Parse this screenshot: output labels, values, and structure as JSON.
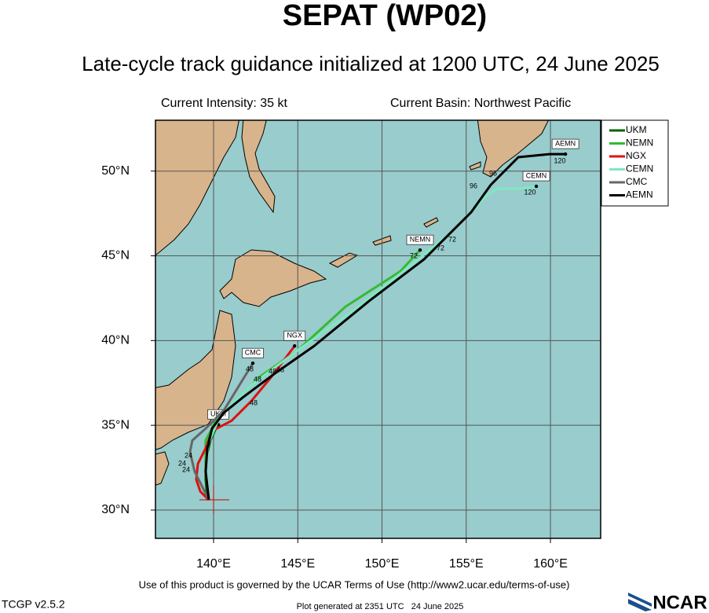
{
  "chart_data": {
    "type": "track",
    "title": "SEPAT (WP02)",
    "subtitle": "Late-cycle track guidance initialized at 1200 UTC, 24 June 2025",
    "intensity": "Current Intensity: 35 kt",
    "basin": "Current Basin: Northwest Pacific",
    "xlim": [
      136.55,
      162.98
    ],
    "ylim": [
      28.33,
      53.0
    ],
    "xticks": [
      {
        "value": 140,
        "label": "140°E"
      },
      {
        "value": 145,
        "label": "145°E"
      },
      {
        "value": 150,
        "label": "150°E"
      },
      {
        "value": 155,
        "label": "155°E"
      },
      {
        "value": 160,
        "label": "160°E"
      }
    ],
    "yticks": [
      {
        "value": 30,
        "label": "30°N"
      },
      {
        "value": 35,
        "label": "35°N"
      },
      {
        "value": 40,
        "label": "40°N"
      },
      {
        "value": 45,
        "label": "45°N"
      },
      {
        "value": 50,
        "label": "50°N"
      }
    ],
    "grid": true,
    "series": [
      {
        "name": "UKM",
        "color": "#006400",
        "x": [
          139.63,
          139.53,
          139.53,
          139.81,
          140.14,
          140.28
        ],
        "values": [
          30.59,
          31.8,
          32.95,
          34.11,
          34.81,
          35.04
        ]
      },
      {
        "name": "NEMN",
        "color": "#33bb33",
        "x": [
          139.72,
          139.53,
          139.53,
          140.14,
          141.3,
          142.7,
          145.03,
          147.83,
          151.09,
          152.26
        ],
        "values": [
          30.59,
          32.26,
          34.11,
          35.27,
          36.43,
          37.83,
          39.45,
          42.0,
          44.09,
          45.34
        ]
      },
      {
        "name": "NGX",
        "color": "#e01010",
        "x": [
          139.72,
          139.21,
          138.97,
          139.07,
          139.53,
          139.91,
          141.07,
          142.24,
          143.41,
          144.81
        ],
        "values": [
          30.59,
          31.1,
          31.8,
          32.73,
          33.65,
          34.67,
          35.27,
          36.43,
          37.83,
          39.68
        ]
      },
      {
        "name": "CEMN",
        "color": "#7fe8c0",
        "x": [
          139.72,
          139.53,
          139.67,
          140.37,
          142.24,
          145.03,
          148.3,
          151.56,
          154.13,
          156.23,
          156.83,
          158.09,
          159.16
        ],
        "values": [
          30.59,
          32.26,
          33.88,
          35.51,
          37.37,
          39.45,
          41.77,
          44.32,
          46.41,
          48.59,
          48.96,
          48.96,
          49.1
        ]
      },
      {
        "name": "CMC",
        "color": "#666666",
        "x": [
          139.72,
          139.35,
          138.88,
          138.6,
          138.74,
          139.53,
          140.61,
          142.33
        ],
        "values": [
          30.59,
          31.33,
          32.26,
          33.42,
          34.11,
          34.81,
          35.88,
          38.66
        ]
      },
      {
        "name": "AEMN",
        "color": "#000000",
        "x": [
          139.72,
          139.53,
          139.63,
          139.91,
          140.61,
          141.77,
          143.64,
          145.97,
          149.23,
          152.49,
          155.29,
          156.46,
          158.09,
          159.95,
          160.89
        ],
        "values": [
          30.59,
          32.26,
          33.65,
          34.81,
          35.74,
          36.67,
          38.06,
          39.68,
          42.33,
          44.79,
          47.57,
          49.19,
          50.82,
          51.0,
          51.0
        ]
      }
    ],
    "legend": "top-right",
    "hour_labels": [
      "24",
      "24",
      "24",
      "48",
      "48",
      "48",
      "48",
      "48",
      "72",
      "72",
      "72",
      "96",
      "96",
      "120",
      "120"
    ]
  },
  "footer": {
    "terms": "Use of this product is governed by the UCAR Terms of Use (http://www2.ucar.edu/terms-of-use)",
    "version": "TCGP v2.5.2",
    "generated": "Plot generated at 2351 UTC   24 June 2025",
    "logo": "NCAR"
  }
}
